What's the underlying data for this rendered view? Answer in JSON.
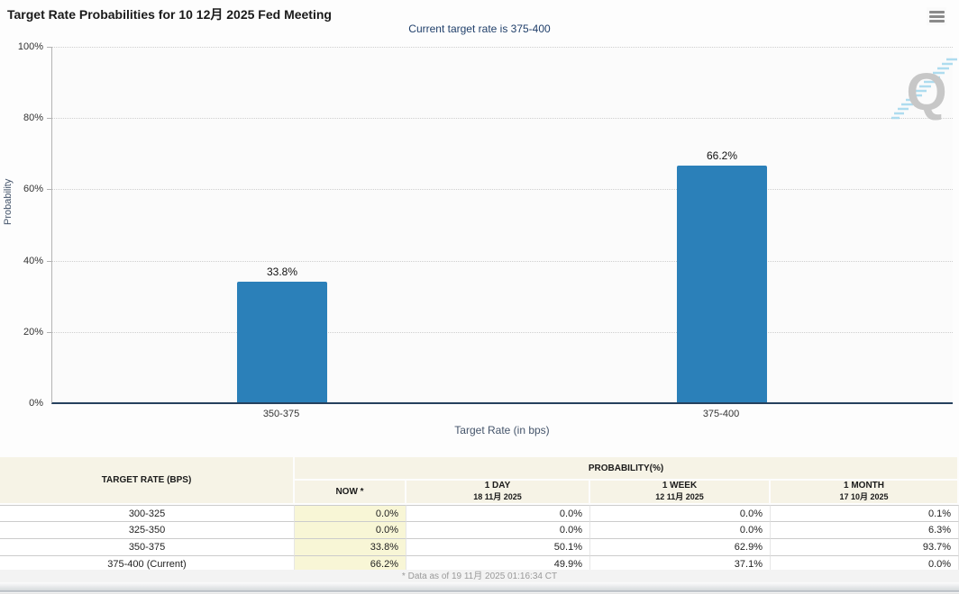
{
  "header": {
    "title": "Target Rate Probabilities for 10 12月 2025 Fed Meeting",
    "subtitle": "Current target rate is 375-400"
  },
  "chart_data": {
    "type": "bar",
    "categories": [
      "350-375",
      "375-400"
    ],
    "values": [
      33.8,
      66.2
    ],
    "value_labels": [
      "33.8%",
      "66.2%"
    ],
    "title": "",
    "xlabel": "Target Rate (in bps)",
    "ylabel": "Probability",
    "ylim": [
      0,
      100
    ],
    "ytick_labels": [
      "100%",
      "80%",
      "60%",
      "40%",
      "20%",
      "0%"
    ],
    "bar_color": "#2b80b9",
    "grid": "horizontal-dotted",
    "legend": "none",
    "watermark": "Q"
  },
  "table": {
    "rate_header": "TARGET RATE (BPS)",
    "group_header": "PROBABILITY(%)",
    "columns": [
      {
        "label": "NOW *",
        "sublabel": ""
      },
      {
        "label": "1 DAY",
        "sublabel": "18 11月 2025"
      },
      {
        "label": "1 WEEK",
        "sublabel": "12 11月 2025"
      },
      {
        "label": "1 MONTH",
        "sublabel": "17 10月 2025"
      }
    ],
    "rows": [
      {
        "rate": "300-325",
        "values": [
          "0.0%",
          "0.0%",
          "0.0%",
          "0.1%"
        ]
      },
      {
        "rate": "325-350",
        "values": [
          "0.0%",
          "0.0%",
          "0.0%",
          "6.3%"
        ]
      },
      {
        "rate": "350-375",
        "values": [
          "33.8%",
          "50.1%",
          "62.9%",
          "93.7%"
        ]
      },
      {
        "rate": "375-400 (Current)",
        "values": [
          "66.2%",
          "49.9%",
          "37.1%",
          "0.0%"
        ]
      }
    ]
  },
  "footer": {
    "note": "* Data as of 19 11月 2025 01:16:34 CT"
  },
  "colors": {
    "bar": "#2b80b9",
    "subtitle_text": "#21406b",
    "table_header_bg": "#f6f3e6",
    "now_column_bg": "#f8f6d6",
    "axis_line": "#26415e"
  }
}
